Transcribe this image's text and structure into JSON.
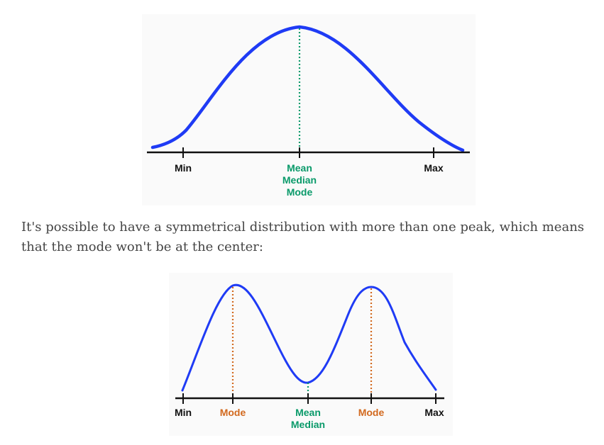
{
  "colors": {
    "curve": "#1f3bf5",
    "axis": "#111111",
    "center": "#0a9a6a",
    "mode": "#d2691e",
    "text": "#444444"
  },
  "figure1": {
    "labels": {
      "min": "Min",
      "max": "Max",
      "center": [
        "Mean",
        "Median",
        "Mode"
      ]
    }
  },
  "paragraph": "It's possible to have a symmetrical distribution with more than one peak, which means that the mode won't be at the center:",
  "figure2": {
    "labels": {
      "min": "Min",
      "mode_left": "Mode",
      "center": [
        "Mean",
        "Median"
      ],
      "mode_right": "Mode",
      "max": "Max"
    }
  }
}
